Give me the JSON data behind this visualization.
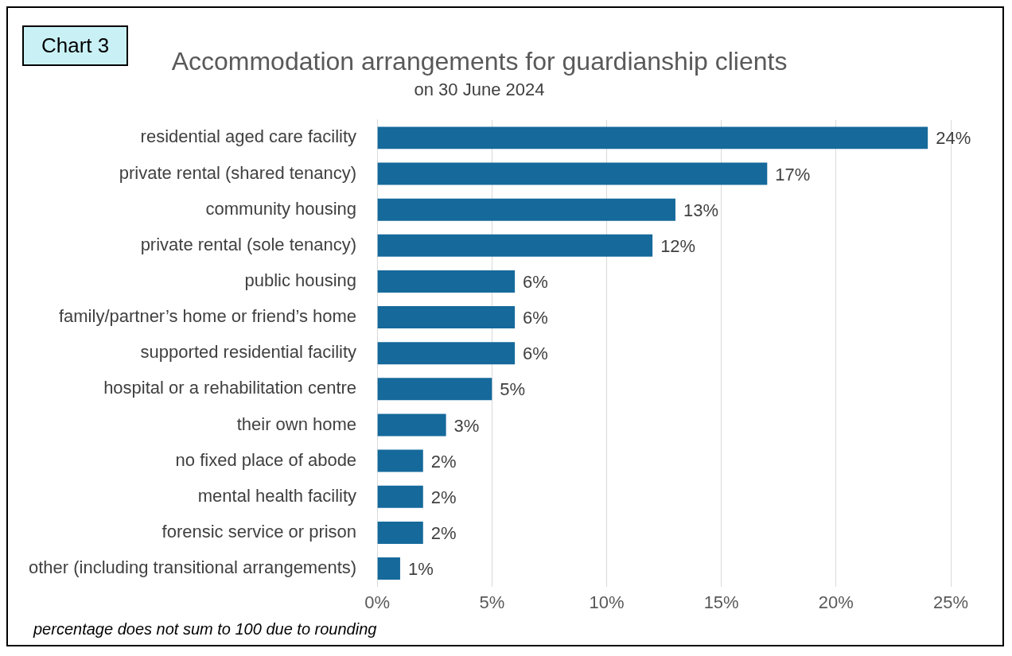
{
  "chart_data": {
    "type": "bar",
    "orientation": "horizontal",
    "title": "Accommodation arrangements for guardianship clients",
    "subtitle": "on 30 June 2024",
    "categories": [
      "residential aged care facility",
      "private rental (shared tenancy)",
      "community housing",
      "private rental (sole tenancy)",
      "public housing",
      "family/partner’s home or friend’s home",
      "supported residential facility",
      "hospital or a rehabilitation centre",
      "their own home",
      "no fixed place of abode",
      "mental health facility",
      "forensic service or prison",
      "other (including transitional arrangements)"
    ],
    "values": [
      24,
      17,
      13,
      12,
      6,
      6,
      6,
      5,
      3,
      2,
      2,
      2,
      1
    ],
    "value_labels": [
      "24%",
      "17%",
      "13%",
      "12%",
      "6%",
      "6%",
      "6%",
      "5%",
      "3%",
      "2%",
      "2%",
      "2%",
      "1%"
    ],
    "color": "#15699b",
    "xlim": [
      0,
      25
    ],
    "xticks": [
      {
        "value": 0,
        "label": "0%"
      },
      {
        "value": 5,
        "label": "5%"
      },
      {
        "value": 10,
        "label": "10%"
      },
      {
        "value": 15,
        "label": "15%"
      },
      {
        "value": 20,
        "label": "20%"
      },
      {
        "value": 25,
        "label": "25%"
      }
    ],
    "grid": "x",
    "annotations": [
      "Chart 3",
      "percentage does not sum to 100 due to rounding"
    ]
  }
}
